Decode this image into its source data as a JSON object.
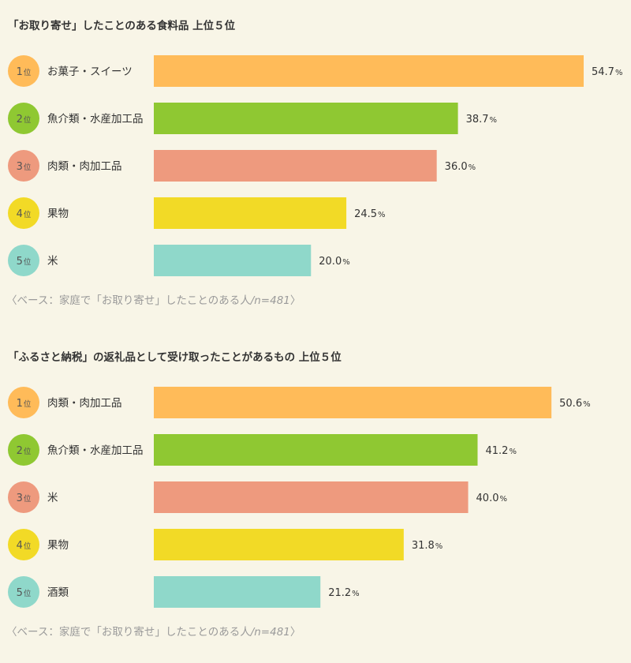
{
  "rank_suffix": "位",
  "unit": "%",
  "chart_data": [
    {
      "type": "bar",
      "title": "「お取り寄せ」したことのある食料品 上位５位",
      "categories": [
        "お菓子・スイーツ",
        "魚介類・水産加工品",
        "肉類・肉加工品",
        "果物",
        "米"
      ],
      "ranks": [
        "1",
        "2",
        "3",
        "4",
        "5"
      ],
      "values": [
        54.7,
        38.7,
        36.0,
        24.5,
        20.0
      ],
      "value_labels": [
        "54.7",
        "38.7",
        "36.0",
        "24.5",
        "20.0"
      ],
      "colors": [
        "#ffbb59",
        "#8fc832",
        "#ee9a7e",
        "#f2da26",
        "#8fd8ca"
      ],
      "xlim": [
        0,
        54.7
      ],
      "note_prefix": "〈ベース：家庭で「お取り寄せ」したことのある人",
      "note_n": "/n=481",
      "note_suffix": "〉"
    },
    {
      "type": "bar",
      "title": "「ふるさと納税」の返礼品として受け取ったことがあるもの 上位５位",
      "categories": [
        "肉類・肉加工品",
        "魚介類・水産加工品",
        "米",
        "果物",
        "酒類"
      ],
      "ranks": [
        "1",
        "2",
        "3",
        "4",
        "5"
      ],
      "values": [
        50.6,
        41.2,
        40.0,
        31.8,
        21.2
      ],
      "value_labels": [
        "50.6",
        "41.2",
        "40.0",
        "31.8",
        "21.2"
      ],
      "colors": [
        "#ffbb59",
        "#8fc832",
        "#ee9a7e",
        "#f2da26",
        "#8fd8ca"
      ],
      "xlim": [
        0,
        54.7
      ],
      "note_prefix": "〈ベース：家庭で「お取り寄せ」したことのある人",
      "note_n": "/n=481",
      "note_suffix": "〉"
    }
  ]
}
